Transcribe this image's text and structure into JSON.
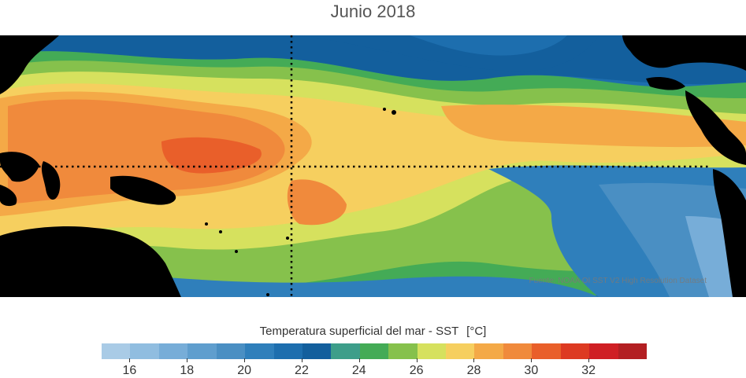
{
  "title": "Junio 2018",
  "map": {
    "description_colors": {
      "land": "#000000",
      "guide_lines": "#000000"
    },
    "credit": "Fuente: NOAA OI SST V2 High Resolution Dataset"
  },
  "colorbar": {
    "label": "Temperatura superficial del mar - SST",
    "unit": "[°C]",
    "segments": [
      {
        "from": 15,
        "to": 16,
        "color": "#a9cbe6"
      },
      {
        "from": 16,
        "to": 17,
        "color": "#90bde0"
      },
      {
        "from": 17,
        "to": 18,
        "color": "#77add8"
      },
      {
        "from": 18,
        "to": 19,
        "color": "#5f9ece"
      },
      {
        "from": 19,
        "to": 20,
        "color": "#4a8fc3"
      },
      {
        "from": 20,
        "to": 21,
        "color": "#2f7fbb"
      },
      {
        "from": 21,
        "to": 22,
        "color": "#1d6eae"
      },
      {
        "from": 22,
        "to": 23,
        "color": "#135f9d"
      },
      {
        "from": 23,
        "to": 24,
        "color": "#3d9e8a"
      },
      {
        "from": 24,
        "to": 25,
        "color": "#44ab56"
      },
      {
        "from": 25,
        "to": 26,
        "color": "#86c14c"
      },
      {
        "from": 26,
        "to": 27,
        "color": "#d6e15e"
      },
      {
        "from": 27,
        "to": 28,
        "color": "#f6cf5f"
      },
      {
        "from": 28,
        "to": 29,
        "color": "#f4a947"
      },
      {
        "from": 29,
        "to": 30,
        "color": "#f08a3c"
      },
      {
        "from": 30,
        "to": 31,
        "color": "#e95f2a"
      },
      {
        "from": 31,
        "to": 32,
        "color": "#dd3a22"
      },
      {
        "from": 32,
        "to": 33,
        "color": "#cf1f24"
      },
      {
        "from": 33,
        "to": 34,
        "color": "#b31f22"
      }
    ],
    "ticks": [
      16,
      18,
      20,
      22,
      24,
      26,
      28,
      30,
      32
    ]
  }
}
